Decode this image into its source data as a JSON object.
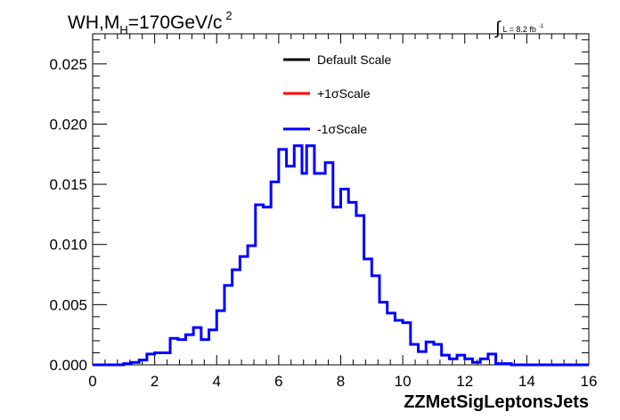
{
  "chart_data": {
    "type": "step",
    "title_parts": {
      "pre": "WH,M",
      "sub": "H",
      "post": "=170GeV/c",
      "sup": "2"
    },
    "lumi_parts": {
      "integral": "∫",
      "text": "L = 8.2 fb",
      "sup": "-1"
    },
    "xlabel": "ZZMetSigLeptonsJets",
    "xlim": [
      0,
      16
    ],
    "ylim": [
      0,
      0.0275
    ],
    "xticks": [
      "0",
      "2",
      "4",
      "6",
      "8",
      "10",
      "12",
      "14",
      "16"
    ],
    "yticks": [
      "0.000",
      "0.005",
      "0.010",
      "0.015",
      "0.020",
      "0.025"
    ],
    "bin_width": 0.5,
    "x": [
      0,
      0.5,
      1,
      1.5,
      2,
      2.5,
      3,
      3.5,
      4,
      4.5,
      5,
      5.5,
      6,
      6.5,
      7,
      7.5,
      8,
      8.5,
      9,
      9.5,
      10,
      10.5,
      11,
      11.5,
      12,
      12.5,
      13,
      13.5,
      14,
      14.5,
      15,
      15.5
    ],
    "legend": [
      {
        "label": "Default Scale",
        "color": "#000000"
      },
      {
        "label": "+1σScale",
        "color": "#ff0000"
      },
      {
        "label": "-1σScale",
        "color": "#0000ff"
      }
    ],
    "series": [
      {
        "name": "-1σScale",
        "color": "#0000ff",
        "step_x": [
          0,
          1,
          1.25,
          1.5,
          1.75,
          2,
          2.5,
          2.75,
          3.0,
          3.25,
          3.5,
          3.75,
          4.0,
          4.25,
          4.5,
          4.75,
          5.0,
          5.25,
          5.5,
          5.75,
          6.0,
          6.25,
          6.5,
          6.75,
          6.9,
          7.15,
          7.5,
          7.75,
          8.0,
          8.25,
          8.5,
          8.75,
          9.0,
          9.25,
          9.5,
          9.75,
          10.0,
          10.25,
          10.5,
          10.75,
          11.0,
          11.25,
          11.5,
          11.75,
          12.0,
          12.25,
          12.5,
          12.75,
          13.0,
          13.25,
          13.5,
          13.75,
          14.0,
          14.25,
          14.5,
          14.75,
          15.0,
          15.25,
          15.5,
          16
        ],
        "step_y": [
          0,
          0.0001,
          0.0002,
          0.0004,
          0.0009,
          0.001,
          0.0022,
          0.0021,
          0.0025,
          0.0031,
          0.0021,
          0.0029,
          0.0045,
          0.0066,
          0.0079,
          0.009,
          0.0099,
          0.0133,
          0.0131,
          0.0152,
          0.0179,
          0.0165,
          0.0182,
          0.0159,
          0.0182,
          0.0159,
          0.0168,
          0.0131,
          0.0146,
          0.0135,
          0.0124,
          0.0088,
          0.0074,
          0.0052,
          0.0043,
          0.0037,
          0.0035,
          0.0017,
          0.0011,
          0.0019,
          0.0017,
          0.0008,
          0.0005,
          0.0008,
          0.0005,
          0.0002,
          0.0005,
          0.0009,
          0.0001,
          0.0001,
          0,
          0,
          0,
          0,
          0,
          0,
          0,
          0,
          0,
          0
        ]
      }
    ]
  }
}
